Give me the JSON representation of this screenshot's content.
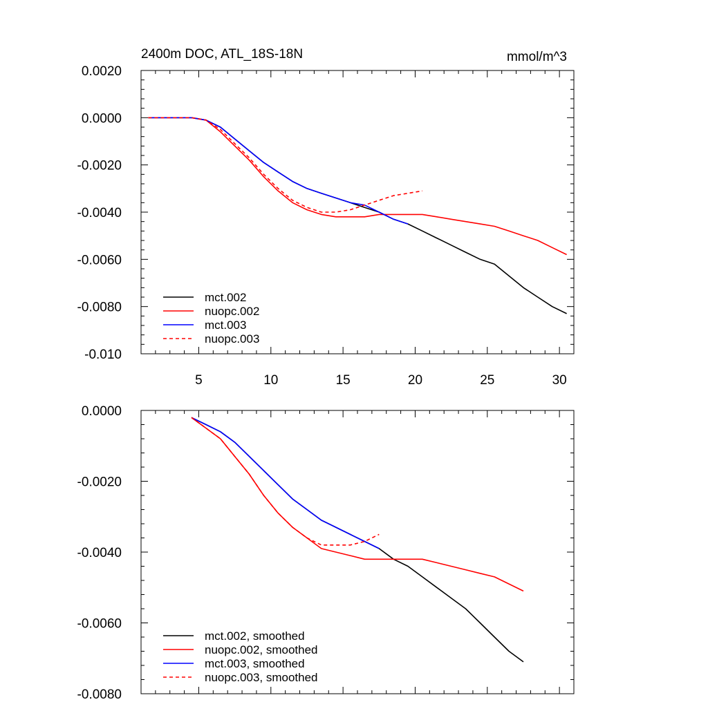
{
  "chart_data": [
    {
      "type": "line",
      "title": "2400m DOC, ATL_18S-18N",
      "units": "mmol/m^3",
      "xlabel": "",
      "ylabel": "",
      "xlim": [
        1.0,
        31.0
      ],
      "ylim": [
        -0.01,
        0.002
      ],
      "xticks": [
        5,
        10,
        15,
        20,
        25,
        30
      ],
      "xtick_labels": [
        "5",
        "10",
        "15",
        "20",
        "25",
        "30"
      ],
      "yticks": [
        0.002,
        0.0,
        -0.002,
        -0.004,
        -0.006,
        -0.008,
        -0.01
      ],
      "ytick_labels": [
        "0.0020",
        "0.0000",
        "-0.0020",
        "-0.0040",
        "-0.0060",
        "-0.0080",
        "-0.010"
      ],
      "legend_position": "bottom-left",
      "series": [
        {
          "name": "mct.002",
          "color": "#000000",
          "dash": "solid",
          "x": [
            1.5,
            2.5,
            3.5,
            4.5,
            5.5,
            6.5,
            7.5,
            8.5,
            9.5,
            10.5,
            11.5,
            12.5,
            13.5,
            14.5,
            15.5,
            16.5,
            17.5,
            18.5,
            19.5,
            20.5,
            21.5,
            22.5,
            23.5,
            24.5,
            25.5,
            26.5,
            27.5,
            28.5,
            29.5,
            30.5
          ],
          "values": [
            0,
            0,
            0,
            0,
            -0.0001,
            -0.0004,
            -0.0009,
            -0.0014,
            -0.0019,
            -0.0023,
            -0.0027,
            -0.003,
            -0.0032,
            -0.0034,
            -0.0036,
            -0.0038,
            -0.004,
            -0.0043,
            -0.0045,
            -0.0048,
            -0.0051,
            -0.0054,
            -0.0057,
            -0.006,
            -0.0062,
            -0.0067,
            -0.0072,
            -0.0076,
            -0.008,
            -0.0083
          ]
        },
        {
          "name": "nuopc.002",
          "color": "#ff0000",
          "dash": "solid",
          "x": [
            1.5,
            2.5,
            3.5,
            4.5,
            5.5,
            6.5,
            7.5,
            8.5,
            9.5,
            10.5,
            11.5,
            12.5,
            13.5,
            14.5,
            15.5,
            16.5,
            17.5,
            18.5,
            19.5,
            20.5,
            21.5,
            22.5,
            23.5,
            24.5,
            25.5,
            26.5,
            27.5,
            28.5,
            29.5,
            30.5
          ],
          "values": [
            0,
            0,
            0,
            0,
            -0.0001,
            -0.0006,
            -0.0012,
            -0.0018,
            -0.0025,
            -0.0031,
            -0.0036,
            -0.0039,
            -0.0041,
            -0.0042,
            -0.0042,
            -0.0042,
            -0.0041,
            -0.0041,
            -0.0041,
            -0.0041,
            -0.0042,
            -0.0043,
            -0.0044,
            -0.0045,
            -0.0046,
            -0.0048,
            -0.005,
            -0.0052,
            -0.0055,
            -0.0058
          ]
        },
        {
          "name": "mct.003",
          "color": "#0000ff",
          "dash": "solid",
          "x": [
            1.5,
            2.5,
            3.5,
            4.5,
            5.5,
            6.5,
            7.5,
            8.5,
            9.5,
            10.5,
            11.5,
            12.5,
            13.5,
            14.5,
            15.5,
            16.5,
            17.5,
            18.5,
            19.5
          ],
          "values": [
            0,
            0,
            0,
            0,
            -0.0001,
            -0.0004,
            -0.0009,
            -0.0014,
            -0.0019,
            -0.0023,
            -0.0027,
            -0.003,
            -0.0032,
            -0.0034,
            -0.0036,
            -0.0037,
            -0.004,
            -0.0043,
            -0.0045
          ]
        },
        {
          "name": "nuopc.003",
          "color": "#ff0000",
          "dash": "dashed",
          "x": [
            1.5,
            2.5,
            3.5,
            4.5,
            5.5,
            6.5,
            7.5,
            8.5,
            9.5,
            10.5,
            11.5,
            12.5,
            13.5,
            14.5,
            15.5,
            16.5,
            17.5,
            18.5,
            19.5,
            20.5
          ],
          "values": [
            0,
            0,
            0,
            0,
            -0.0001,
            -0.0005,
            -0.0011,
            -0.0017,
            -0.0024,
            -0.003,
            -0.0035,
            -0.0038,
            -0.004,
            -0.004,
            -0.0039,
            -0.0037,
            -0.0035,
            -0.0033,
            -0.0032,
            -0.0031
          ]
        }
      ]
    },
    {
      "type": "line",
      "title": "",
      "xlabel": "",
      "ylabel": "",
      "xlim": [
        1.0,
        31.0
      ],
      "ylim": [
        -0.008,
        0.0
      ],
      "xticks": [
        5,
        10,
        15,
        20,
        25,
        30
      ],
      "xtick_labels": [],
      "yticks": [
        0.0,
        -0.002,
        -0.004,
        -0.006,
        -0.008
      ],
      "ytick_labels": [
        "0.0000",
        "-0.0020",
        "-0.0040",
        "-0.0060",
        "-0.0080"
      ],
      "legend_position": "bottom-left",
      "series": [
        {
          "name": "mct.002, smoothed",
          "color": "#000000",
          "dash": "solid",
          "x": [
            4.5,
            5.5,
            6.5,
            7.5,
            8.5,
            9.5,
            10.5,
            11.5,
            12.5,
            13.5,
            14.5,
            15.5,
            16.5,
            17.5,
            18.5,
            19.5,
            20.5,
            21.5,
            22.5,
            23.5,
            24.5,
            25.5,
            26.5,
            27.5
          ],
          "values": [
            -0.0002,
            -0.0004,
            -0.0006,
            -0.0009,
            -0.0013,
            -0.0017,
            -0.0021,
            -0.0025,
            -0.0028,
            -0.0031,
            -0.0033,
            -0.0035,
            -0.0037,
            -0.0039,
            -0.0042,
            -0.0044,
            -0.0047,
            -0.005,
            -0.0053,
            -0.0056,
            -0.006,
            -0.0064,
            -0.0068,
            -0.0071
          ]
        },
        {
          "name": "nuopc.002, smoothed",
          "color": "#ff0000",
          "dash": "solid",
          "x": [
            4.5,
            5.5,
            6.5,
            7.5,
            8.5,
            9.5,
            10.5,
            11.5,
            12.5,
            13.5,
            14.5,
            15.5,
            16.5,
            17.5,
            18.5,
            19.5,
            20.5,
            21.5,
            22.5,
            23.5,
            24.5,
            25.5,
            26.5,
            27.5
          ],
          "values": [
            -0.0002,
            -0.0005,
            -0.0008,
            -0.0013,
            -0.0018,
            -0.0024,
            -0.0029,
            -0.0033,
            -0.0036,
            -0.0039,
            -0.004,
            -0.0041,
            -0.0042,
            -0.0042,
            -0.0042,
            -0.0042,
            -0.0042,
            -0.0043,
            -0.0044,
            -0.0045,
            -0.0046,
            -0.0047,
            -0.0049,
            -0.0051
          ]
        },
        {
          "name": "mct.003, smoothed",
          "color": "#0000ff",
          "dash": "solid",
          "x": [
            4.5,
            5.5,
            6.5,
            7.5,
            8.5,
            9.5,
            10.5,
            11.5,
            12.5,
            13.5,
            14.5,
            15.5,
            16.5,
            17.5
          ],
          "values": [
            -0.0002,
            -0.0004,
            -0.0006,
            -0.0009,
            -0.0013,
            -0.0017,
            -0.0021,
            -0.0025,
            -0.0028,
            -0.0031,
            -0.0033,
            -0.0035,
            -0.0037,
            -0.0039
          ]
        },
        {
          "name": "nuopc.003, smoothed",
          "color": "#ff0000",
          "dash": "dashed",
          "x": [
            4.5,
            5.5,
            6.5,
            7.5,
            8.5,
            9.5,
            10.5,
            11.5,
            12.5,
            13.5,
            14.5,
            15.5,
            16.5,
            17.5
          ],
          "values": [
            -0.0002,
            -0.0005,
            -0.0008,
            -0.0013,
            -0.0018,
            -0.0024,
            -0.0029,
            -0.0033,
            -0.0036,
            -0.0038,
            -0.0038,
            -0.0038,
            -0.0037,
            -0.0035
          ]
        }
      ]
    }
  ]
}
